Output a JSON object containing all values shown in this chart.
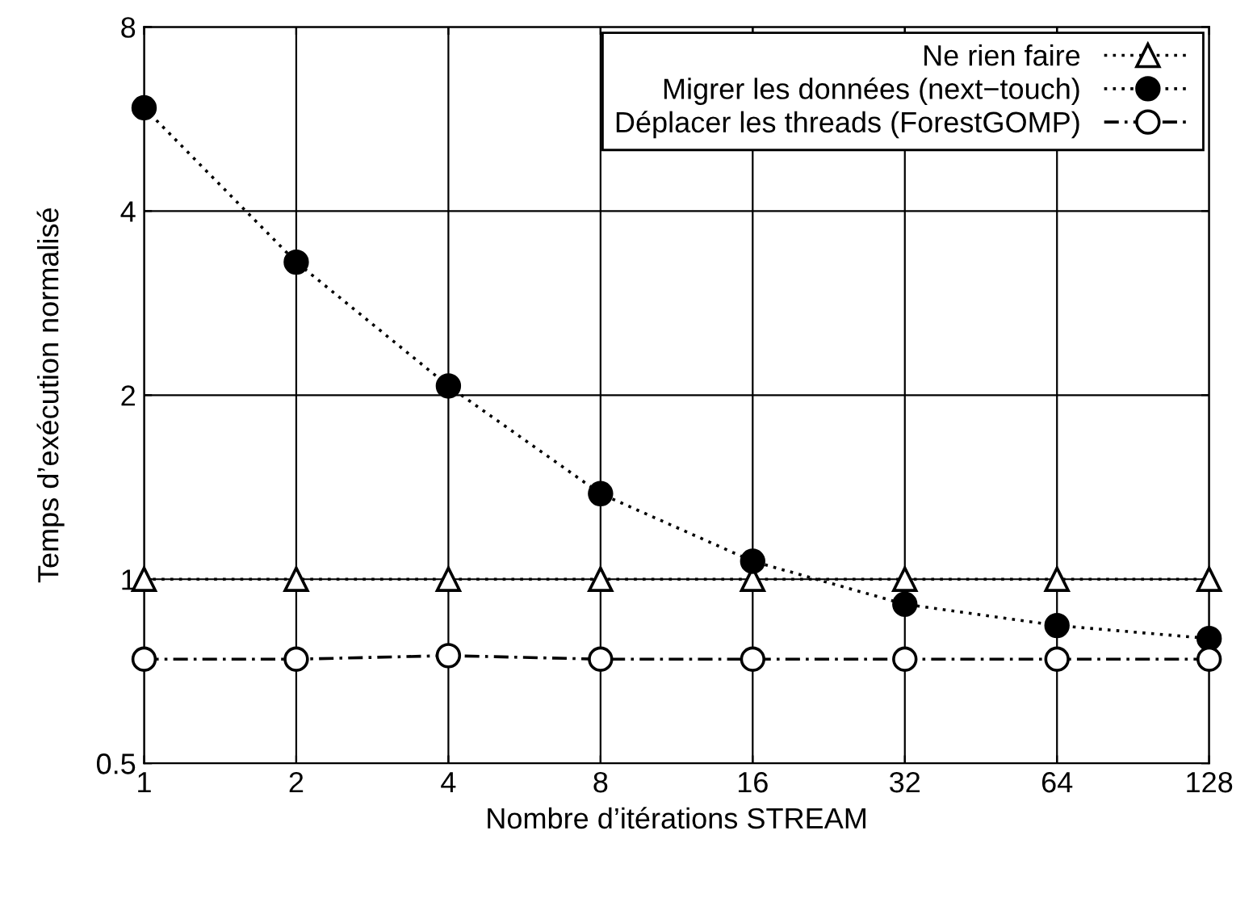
{
  "chart_data": {
    "type": "line",
    "xlabel": "Nombre d’itérations STREAM",
    "ylabel": "Temps d’exécution normalisé",
    "x": [
      1,
      2,
      4,
      8,
      16,
      32,
      64,
      128
    ],
    "series": [
      {
        "name": "Ne rien faire",
        "color": "#000000",
        "marker": "triangle",
        "line_style": "dotted",
        "values": [
          1,
          1,
          1,
          1,
          1,
          1,
          1,
          1
        ]
      },
      {
        "name": "Migrer les données (next−touch)",
        "color": "#000000",
        "marker": "circle",
        "line_style": "dotted",
        "values": [
          5.9,
          3.3,
          2.07,
          1.38,
          1.07,
          0.91,
          0.84,
          0.8
        ]
      },
      {
        "name": "Déplacer les threads (ForestGOMP)",
        "color": "#000000",
        "marker": "circle",
        "line_style": "dashed",
        "values": [
          0.74,
          0.74,
          0.75,
          0.74,
          0.74,
          0.74,
          0.74,
          0.74
        ]
      }
    ],
    "log": "xy",
    "xlim": [
      1,
      128
    ],
    "xticks": [
      1,
      2,
      4,
      8,
      16,
      32,
      64,
      128
    ],
    "ylim": [
      0.5,
      8
    ],
    "yticks": [
      0.5,
      1,
      2,
      4,
      8
    ],
    "grid": true,
    "legend": "top right"
  }
}
